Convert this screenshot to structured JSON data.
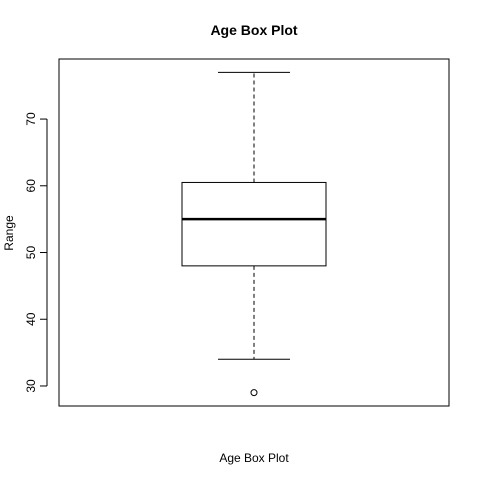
{
  "chart_data": {
    "type": "box",
    "title": "Age Box Plot",
    "xlabel": "Age Box Plot",
    "ylabel": "Range",
    "ylim": [
      27,
      79
    ],
    "yticks": [
      30,
      40,
      50,
      60,
      70
    ],
    "box": {
      "min": 34,
      "q1": 48,
      "median": 55,
      "q3": 60.5,
      "max": 77,
      "outliers": [
        29
      ]
    },
    "grid": false,
    "legend": "none"
  }
}
